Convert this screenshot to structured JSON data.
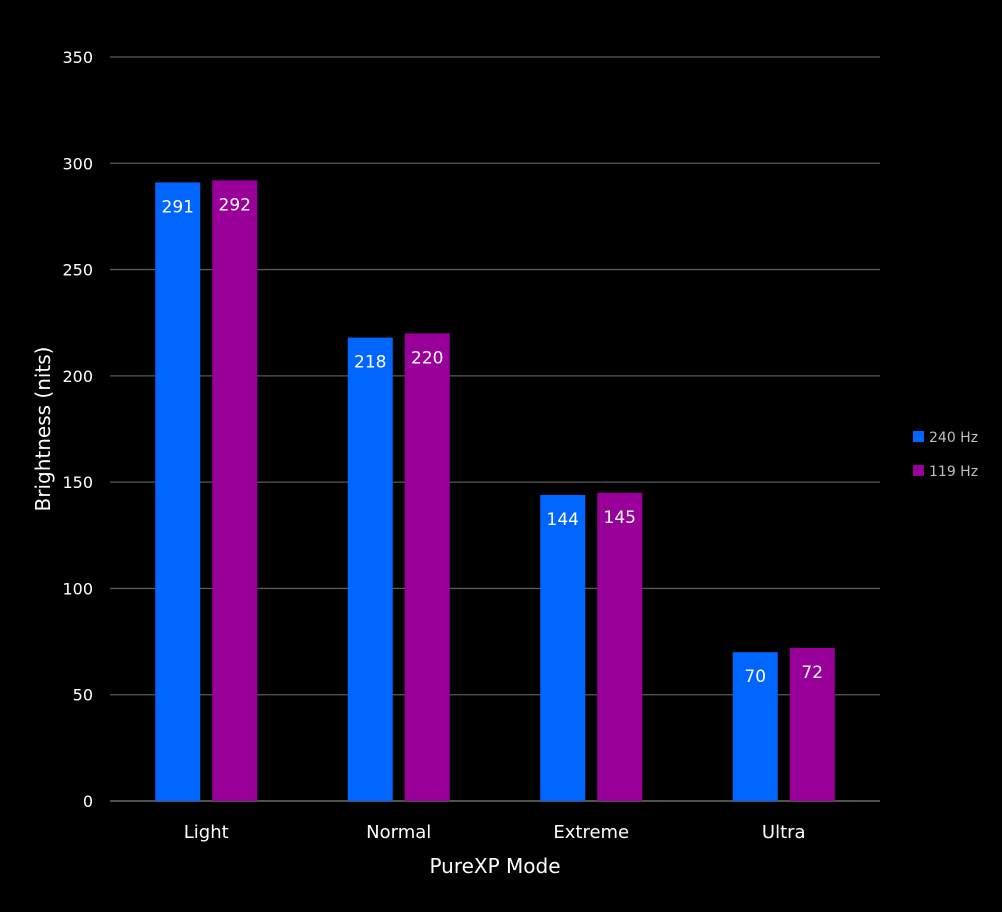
{
  "chart_data": {
    "type": "bar",
    "title": "",
    "xlabel": "PureXP Mode",
    "ylabel": "Brightness (nits)",
    "categories": [
      "Light",
      "Normal",
      "Extreme",
      "Ultra"
    ],
    "series": [
      {
        "name": "240 Hz",
        "values": [
          291,
          218,
          144,
          70
        ],
        "color": "#0066ff"
      },
      {
        "name": "119 Hz",
        "values": [
          292,
          220,
          145,
          72
        ],
        "color": "#990099"
      }
    ],
    "ylim": [
      0,
      350
    ],
    "yticks": [
      0,
      50,
      100,
      150,
      200,
      250,
      300,
      350
    ],
    "grid": true,
    "legend": "right",
    "data_labels": true,
    "background": "#000000"
  }
}
